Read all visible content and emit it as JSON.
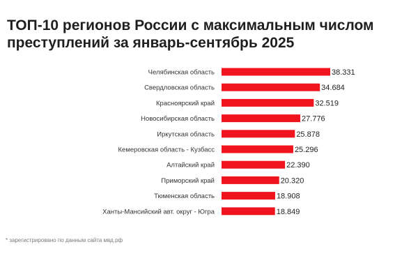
{
  "title_line1": "ТОП-10 регионов России с максимальным числом",
  "title_line2": "преступлений за январь-сентябрь 2025",
  "footnote": "* зарегистрировано по данным сайта мвд.рф",
  "bar_color": "#f0141e",
  "chart_data": {
    "type": "bar",
    "orientation": "horizontal",
    "title": "ТОП-10 регионов России с максимальным числом преступлений за январь-сентябрь 2025",
    "categories": [
      "Челябинская область",
      "Свердловская область",
      "Красноярский край",
      "Новосибирская область",
      "Иркутская область",
      "Кемеровская область - Кузбасс",
      "Алтайский край",
      "Приморский край",
      "Тюменская область",
      "Ханты-Мансийский авт. округ - Югра"
    ],
    "values": [
      38331,
      34684,
      32519,
      27776,
      25878,
      25296,
      22390,
      20320,
      18908,
      18849
    ],
    "value_labels": [
      "38.331",
      "34.684",
      "32.519",
      "27.776",
      "25.878",
      "25.296",
      "22.390",
      "20.320",
      "18.908",
      "18.849"
    ],
    "xlim": [
      0,
      38331
    ],
    "grid": false,
    "legend": "none"
  }
}
